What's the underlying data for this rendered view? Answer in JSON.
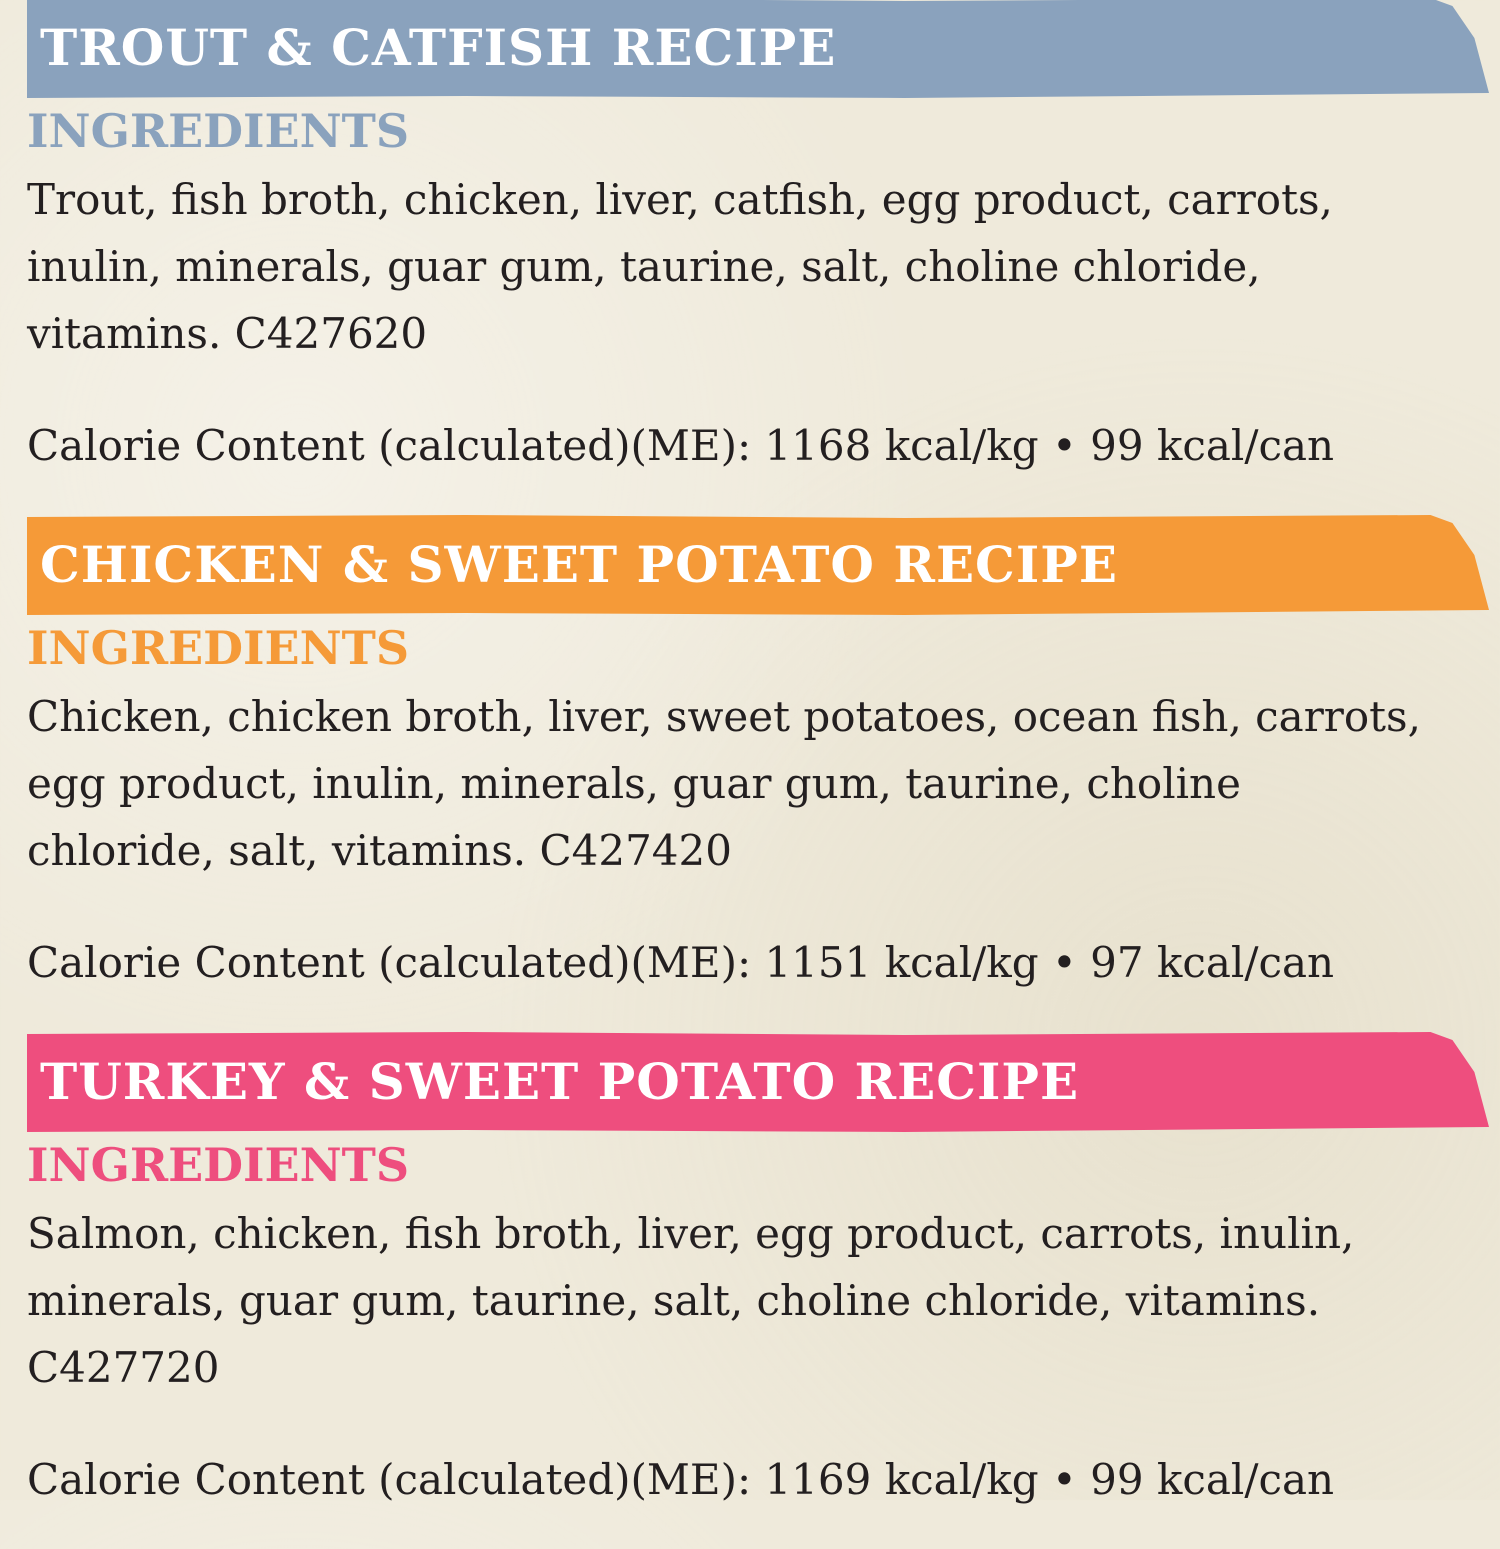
{
  "sections": [
    {
      "title": "TROUT & CATFISH RECIPE",
      "color": "#8aa2bd",
      "ingredients_label": "INGREDIENTS",
      "ingredients_lines": [
        "Trout, fish broth, chicken, liver, catfish, egg product, carrots,",
        "inulin, minerals, guar gum, taurine, salt, choline chloride,",
        "vitamins. C427620"
      ],
      "calorie": "Calorie Content (calculated)(ME): 1168 kcal/kg • 99 kcal/can"
    },
    {
      "title": "CHICKEN & SWEET POTATO RECIPE",
      "color": "#f59a38",
      "ingredients_label": "INGREDIENTS",
      "ingredients_lines": [
        "Chicken, chicken broth, liver, sweet potatoes, ocean fish, carrots,",
        "egg product, inulin, minerals, guar gum, taurine, choline",
        "chloride, salt, vitamins. C427420"
      ],
      "calorie": "Calorie Content (calculated)(ME): 1151 kcal/kg • 97 kcal/can"
    },
    {
      "title": "TURKEY & SWEET POTATO RECIPE",
      "color": "#ee4e7e",
      "ingredients_label": "INGREDIENTS",
      "ingredients_lines": [
        "Salmon, chicken, fish broth, liver, egg product, carrots, inulin,",
        "minerals, guar gum, taurine, salt, choline chloride, vitamins.",
        "C427720"
      ],
      "calorie": "Calorie Content (calculated)(ME): 1169 kcal/kg • 99 kcal/can"
    }
  ]
}
